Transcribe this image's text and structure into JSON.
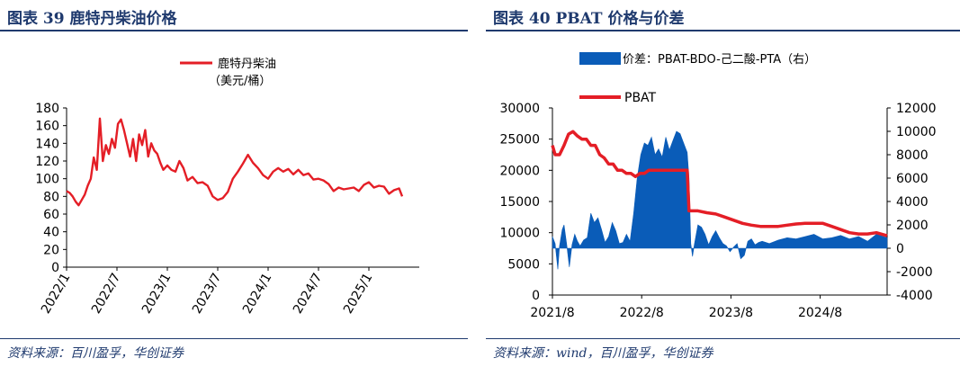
{
  "colors": {
    "title": "#1f3a6e",
    "line": "#e41e26",
    "area": "#0a5cb8",
    "axis": "#000000"
  },
  "left": {
    "figure_title": "图表 39   鹿特丹柴油价格",
    "source": "资料来源：百川盈孚，华创证券"
  },
  "right": {
    "figure_title": "图表 40   PBAT 价格与价差",
    "source": "资料来源：wind，百川盈孚，华创证券"
  },
  "chart_data": [
    {
      "type": "line",
      "title": "鹿特丹柴油价格",
      "legend": [
        "鹿特丹柴油",
        "（美元/桶）"
      ],
      "ylim": [
        0,
        180
      ],
      "yticks": [
        0,
        20,
        40,
        60,
        80,
        100,
        120,
        140,
        160,
        180
      ],
      "ytick_labels": [
        "0",
        "20",
        "40",
        "60",
        "80",
        "100",
        "120",
        "140",
        "160",
        "180"
      ],
      "xlim": [
        2022.0,
        2025.5
      ],
      "xticks": [
        2022.0,
        2022.5,
        2023.0,
        2023.5,
        2024.0,
        2024.5,
        2025.0
      ],
      "xtick_labels": [
        "2022/1",
        "2022/7",
        "2023/1",
        "2023/7",
        "2024/1",
        "2024/7",
        "2025/1"
      ],
      "series": [
        {
          "name": "鹿特丹柴油",
          "x": [
            2022.0,
            2022.03,
            2022.06,
            2022.09,
            2022.12,
            2022.15,
            2022.18,
            2022.21,
            2022.24,
            2022.27,
            2022.3,
            2022.33,
            2022.36,
            2022.39,
            2022.42,
            2022.45,
            2022.48,
            2022.51,
            2022.54,
            2022.57,
            2022.6,
            2022.63,
            2022.66,
            2022.69,
            2022.72,
            2022.75,
            2022.78,
            2022.81,
            2022.84,
            2022.87,
            2022.9,
            2022.93,
            2022.96,
            2023.0,
            2023.04,
            2023.08,
            2023.12,
            2023.16,
            2023.2,
            2023.25,
            2023.3,
            2023.35,
            2023.4,
            2023.45,
            2023.5,
            2023.55,
            2023.6,
            2023.65,
            2023.7,
            2023.75,
            2023.8,
            2023.85,
            2023.9,
            2023.95,
            2024.0,
            2024.05,
            2024.1,
            2024.15,
            2024.2,
            2024.25,
            2024.3,
            2024.35,
            2024.4,
            2024.45,
            2024.5,
            2024.55,
            2024.6,
            2024.65,
            2024.7,
            2024.75,
            2024.8,
            2024.85,
            2024.9,
            2024.95,
            2025.0,
            2025.05,
            2025.1,
            2025.15,
            2025.2,
            2025.25,
            2025.3,
            2025.33
          ],
          "values": [
            86,
            84,
            80,
            74,
            70,
            76,
            82,
            92,
            100,
            124,
            110,
            168,
            120,
            138,
            128,
            145,
            135,
            162,
            167,
            155,
            140,
            125,
            145,
            120,
            150,
            138,
            155,
            125,
            140,
            132,
            128,
            118,
            110,
            115,
            110,
            108,
            120,
            112,
            98,
            102,
            95,
            96,
            92,
            80,
            76,
            78,
            85,
            100,
            108,
            117,
            127,
            118,
            112,
            104,
            100,
            108,
            112,
            108,
            111,
            105,
            110,
            104,
            106,
            99,
            100,
            98,
            94,
            86,
            90,
            88,
            89,
            90,
            86,
            93,
            96,
            90,
            92,
            91,
            83,
            87,
            89,
            80
          ]
        }
      ]
    },
    {
      "type": "area+line",
      "title": "PBAT 价格与价差",
      "left_axis": {
        "ylim": [
          0,
          30000
        ],
        "ticks": [
          0,
          5000,
          10000,
          15000,
          20000,
          25000,
          30000
        ],
        "labels": [
          "0",
          "5000",
          "10000",
          "15000",
          "20000",
          "25000",
          "30000"
        ]
      },
      "right_axis": {
        "ylim": [
          -4000,
          12000
        ],
        "ticks": [
          -4000,
          -2000,
          0,
          2000,
          4000,
          6000,
          8000,
          10000,
          12000
        ],
        "labels": [
          "-4000",
          "-2000",
          "0",
          "2000",
          "4000",
          "6000",
          "8000",
          "10000",
          "12000"
        ]
      },
      "xlim": [
        2021.67,
        2025.42
      ],
      "xticks": [
        2021.67,
        2022.67,
        2023.67,
        2024.67
      ],
      "xtick_labels": [
        "2021/8",
        "2022/8",
        "2023/8",
        "2024/8"
      ],
      "series": [
        {
          "name": "价差：PBAT-BDO-己二酸-PTA（右）",
          "type": "area",
          "axis": "right",
          "x": [
            2021.67,
            2021.7,
            2021.73,
            2021.75,
            2021.78,
            2021.8,
            2021.83,
            2021.86,
            2021.89,
            2021.92,
            2021.95,
            2021.98,
            2022.02,
            2022.06,
            2022.1,
            2022.14,
            2022.18,
            2022.22,
            2022.26,
            2022.3,
            2022.34,
            2022.38,
            2022.42,
            2022.46,
            2022.5,
            2022.54,
            2022.58,
            2022.62,
            2022.66,
            2022.7,
            2022.74,
            2022.78,
            2022.82,
            2022.86,
            2022.9,
            2022.94,
            2022.98,
            2023.02,
            2023.06,
            2023.1,
            2023.14,
            2023.18,
            2023.2,
            2023.22,
            2023.24,
            2023.26,
            2023.3,
            2023.34,
            2023.38,
            2023.42,
            2023.46,
            2023.5,
            2023.54,
            2023.58,
            2023.62,
            2023.66,
            2023.7,
            2023.74,
            2023.78,
            2023.82,
            2023.86,
            2023.9,
            2023.94,
            2023.98,
            2024.02,
            2024.1,
            2024.2,
            2024.3,
            2024.4,
            2024.5,
            2024.6,
            2024.7,
            2024.8,
            2024.9,
            2025.0,
            2025.1,
            2025.2,
            2025.3,
            2025.42
          ],
          "values": [
            1000,
            400,
            -1800,
            200,
            1600,
            2000,
            300,
            -1600,
            300,
            1200,
            600,
            200,
            700,
            900,
            3000,
            2200,
            2600,
            1600,
            500,
            1000,
            2200,
            1500,
            400,
            500,
            1200,
            600,
            3000,
            6000,
            8000,
            9000,
            8800,
            9500,
            8000,
            8500,
            7800,
            9500,
            8400,
            9200,
            10000,
            9800,
            9000,
            8200,
            6000,
            400,
            -700,
            300,
            2000,
            1800,
            1200,
            300,
            1000,
            1500,
            900,
            400,
            200,
            -300,
            100,
            400,
            -900,
            -600,
            600,
            800,
            300,
            500,
            600,
            400,
            700,
            900,
            800,
            1000,
            1200,
            800,
            900,
            1100,
            800,
            1000,
            600,
            1200,
            900
          ]
        },
        {
          "name": "PBAT",
          "type": "line",
          "axis": "left",
          "x": [
            2021.67,
            2021.7,
            2021.75,
            2021.8,
            2021.85,
            2021.9,
            2021.95,
            2022.0,
            2022.05,
            2022.1,
            2022.15,
            2022.2,
            2022.25,
            2022.3,
            2022.35,
            2022.4,
            2022.45,
            2022.5,
            2022.55,
            2022.6,
            2022.65,
            2022.7,
            2022.75,
            2022.8,
            2022.9,
            2023.0,
            2023.1,
            2023.18,
            2023.2,
            2023.22,
            2023.3,
            2023.4,
            2023.5,
            2023.6,
            2023.7,
            2023.8,
            2023.9,
            2024.0,
            2024.1,
            2024.2,
            2024.3,
            2024.4,
            2024.5,
            2024.6,
            2024.7,
            2024.8,
            2024.9,
            2025.0,
            2025.1,
            2025.2,
            2025.3,
            2025.42
          ],
          "values": [
            24000,
            22500,
            22500,
            24000,
            25800,
            26200,
            25500,
            25000,
            25000,
            24000,
            24000,
            22500,
            22000,
            21000,
            21000,
            20000,
            20000,
            19500,
            19500,
            19000,
            19500,
            19500,
            20000,
            20000,
            20000,
            20000,
            20000,
            20000,
            13500,
            13500,
            13500,
            13200,
            13000,
            12500,
            12000,
            11500,
            11200,
            11000,
            11000,
            11000,
            11200,
            11400,
            11500,
            11500,
            11500,
            11000,
            10500,
            10000,
            9800,
            9800,
            10000,
            9500
          ]
        }
      ]
    }
  ]
}
